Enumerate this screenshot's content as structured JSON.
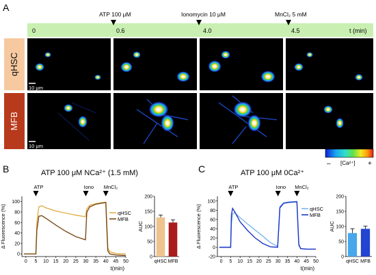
{
  "panels": {
    "a": "A",
    "b": "B",
    "c": "C"
  },
  "timeline": {
    "events": [
      {
        "label": "ATP 100 μM",
        "time": "0.6"
      },
      {
        "label": "Ionomycin 10 μM",
        "time": "4.0"
      },
      {
        "label": "MnCl₂  5 mM",
        "time": "4.5"
      }
    ],
    "ticks": [
      "0",
      "0.6",
      "4.0",
      "4.5"
    ],
    "unit": "t (min)",
    "bar_color": "#c9f0b2"
  },
  "rows": [
    {
      "label": "qHSC",
      "color": "#f7c9a0"
    },
    {
      "label": "MFB",
      "color": "#b83a1c"
    }
  ],
  "scalebar": "10 μm",
  "colorbar": {
    "minus": "–",
    "label": "[Ca²⁺]",
    "plus": "+"
  },
  "chart_data": [
    {
      "type": "line",
      "title": "ATP 100 μM NCa²⁺ (1.5 mM)",
      "xlabel": "t(min)",
      "ylabel": "Δ Fluorescence (%)",
      "xlim": [
        -2,
        50
      ],
      "ylim": [
        -5,
        110
      ],
      "xticks": [
        "0",
        "5",
        "10",
        "15",
        "20",
        "25",
        "30",
        "35",
        "40",
        "45",
        "50"
      ],
      "yticks": [
        "0",
        "20",
        "40",
        "60",
        "80",
        "100"
      ],
      "annotations": [
        {
          "text": "ATP",
          "x": 5
        },
        {
          "text": "Iono",
          "x": 30
        },
        {
          "text": "MnCl₂",
          "x": 40
        }
      ],
      "series": [
        {
          "name": "qHSC",
          "color": "#e2b04a",
          "x": [
            -1,
            5,
            5.5,
            6.5,
            8,
            10,
            15,
            20,
            25,
            29.8,
            30.5,
            32,
            35,
            38,
            40,
            40.5,
            41,
            42,
            45,
            50
          ],
          "y": [
            0,
            0,
            60,
            90,
            92,
            88,
            82,
            78,
            74,
            71,
            86,
            93,
            96,
            98,
            99,
            60,
            12,
            4,
            1,
            0
          ]
        },
        {
          "name": "MFB",
          "color": "#7a4a18",
          "x": [
            -1,
            5,
            5.5,
            6.5,
            8,
            10,
            15,
            20,
            25,
            29.8,
            30.5,
            32,
            35,
            38,
            40,
            40.5,
            41,
            42,
            45,
            50
          ],
          "y": [
            0,
            0,
            45,
            72,
            73,
            68,
            55,
            43,
            33,
            27,
            80,
            90,
            95,
            97,
            98,
            50,
            6,
            0,
            -2,
            -3
          ]
        }
      ]
    },
    {
      "type": "bar",
      "ylabel": "AUC",
      "categories": [
        "qHSC",
        "MFB"
      ],
      "values": [
        130,
        113
      ],
      "errors": [
        8,
        9
      ],
      "colors": [
        "#eec38e",
        "#a81c1c"
      ],
      "ylim": [
        0,
        200
      ],
      "yticks": [
        "0",
        "50",
        "100",
        "150",
        "200"
      ]
    },
    {
      "type": "line",
      "title": "ATP 100 μM 0Ca²⁺",
      "xlabel": "t(min)",
      "ylabel": "Δ Fluorescence (%)",
      "xlim": [
        -2,
        50
      ],
      "ylim": [
        -20,
        110
      ],
      "xticks": [
        "0",
        "5",
        "10",
        "15",
        "20",
        "25",
        "30",
        "35",
        "40",
        "45",
        "50"
      ],
      "yticks": [
        "-20",
        "0",
        "20",
        "40",
        "60",
        "80",
        "100"
      ],
      "annotations": [
        {
          "text": "ATP",
          "x": 5
        },
        {
          "text": "Iono",
          "x": 30
        },
        {
          "text": "MnCl₂",
          "x": 40
        }
      ],
      "series": [
        {
          "name": "qHSC",
          "color": "#7ab6ee",
          "x": [
            -1,
            5,
            5.4,
            6,
            7,
            10,
            14,
            18,
            22,
            26,
            29.8,
            30.4,
            31,
            33,
            36,
            40,
            40.5,
            41,
            42,
            45,
            50
          ],
          "y": [
            0,
            0,
            50,
            72,
            75,
            64,
            50,
            37,
            24,
            10,
            2,
            45,
            88,
            96,
            98,
            99,
            55,
            8,
            -3,
            -4,
            -4
          ]
        },
        {
          "name": "MFB",
          "color": "#1c36c6",
          "x": [
            -1,
            5,
            5.4,
            6,
            7,
            10,
            14,
            18,
            22,
            26,
            29.8,
            30.4,
            31,
            33,
            36,
            40,
            40.5,
            41,
            42,
            45,
            50
          ],
          "y": [
            0,
            0,
            70,
            84,
            78,
            55,
            36,
            20,
            8,
            1,
            0,
            40,
            85,
            95,
            97,
            98,
            50,
            5,
            -3,
            -4,
            -4
          ]
        }
      ]
    },
    {
      "type": "bar",
      "ylabel": "AUC",
      "categories": [
        "qHSC",
        "MFB"
      ],
      "values": [
        78,
        92
      ],
      "errors": [
        14,
        9
      ],
      "colors": [
        "#47a7ea",
        "#2244d0"
      ],
      "ylim": [
        0,
        200
      ],
      "yticks": [
        "0",
        "50",
        "100",
        "150",
        "200"
      ]
    }
  ]
}
